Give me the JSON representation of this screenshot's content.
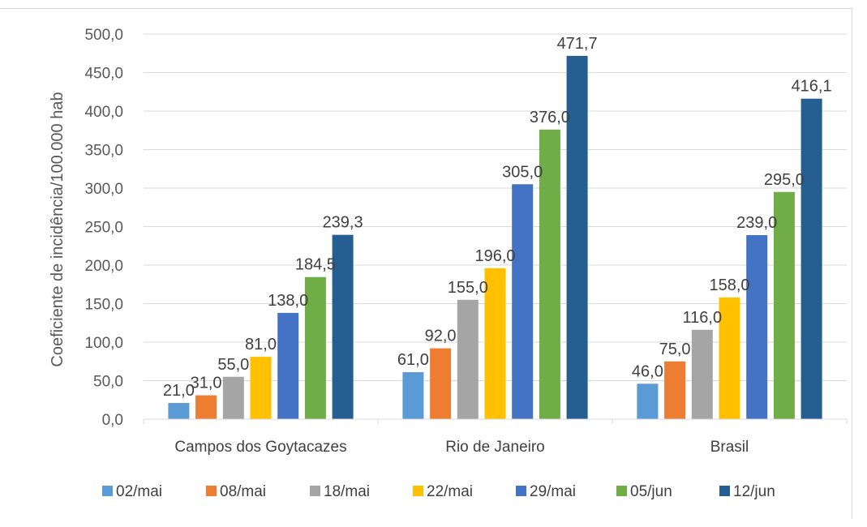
{
  "chart_data": {
    "type": "bar",
    "title": "",
    "xlabel": "",
    "ylabel": "Coeficiente de incidência/100.000 hab",
    "ylim": [
      0,
      500
    ],
    "yticks": [
      "0,0",
      "50,0",
      "100,0",
      "150,0",
      "200,0",
      "250,0",
      "300,0",
      "350,0",
      "400,0",
      "450,0",
      "500,0"
    ],
    "categories": [
      "Campos dos Goytacazes",
      "Rio de Janeiro",
      "Brasil"
    ],
    "grid": true,
    "legend_position": "bottom",
    "series": [
      {
        "name": "02/mai",
        "color": "#5b9bd5",
        "values": [
          21.0,
          61.0,
          46.0
        ],
        "labels": [
          "21,0",
          "61,0",
          "46,0"
        ]
      },
      {
        "name": "08/mai",
        "color": "#ed7d31",
        "values": [
          31.0,
          92.0,
          75.0
        ],
        "labels": [
          "31,0",
          "92,0",
          "75,0"
        ]
      },
      {
        "name": "18/mai",
        "color": "#a5a5a5",
        "values": [
          55.0,
          155.0,
          116.0
        ],
        "labels": [
          "55,0",
          "155,0",
          "116,0"
        ]
      },
      {
        "name": "22/mai",
        "color": "#ffc000",
        "values": [
          81.0,
          196.0,
          158.0
        ],
        "labels": [
          "81,0",
          "196,0",
          "158,0"
        ]
      },
      {
        "name": "29/mai",
        "color": "#4472c4",
        "values": [
          138.0,
          305.0,
          239.0
        ],
        "labels": [
          "138,0",
          "305,0",
          "239,0"
        ]
      },
      {
        "name": "05/jun",
        "color": "#70ad47",
        "values": [
          184.5,
          376.0,
          295.0
        ],
        "labels": [
          "184,5",
          "376,0",
          "295,0"
        ]
      },
      {
        "name": "12/jun",
        "color": "#255e91",
        "values": [
          239.3,
          471.7,
          416.1
        ],
        "labels": [
          "239,3",
          "471,7",
          "416,1"
        ]
      }
    ]
  }
}
